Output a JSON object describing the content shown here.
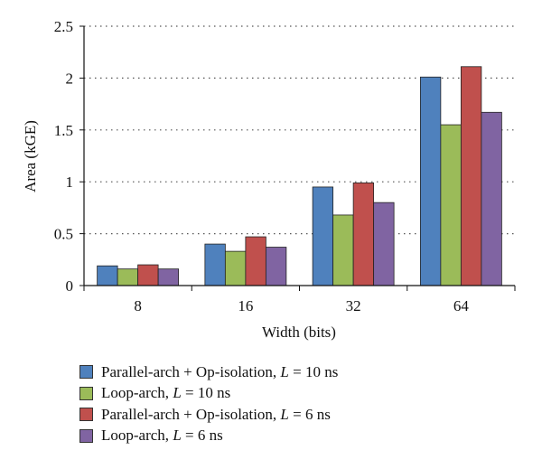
{
  "chart_data": {
    "type": "bar",
    "title": "",
    "xlabel": "Width (bits)",
    "ylabel": "Area (kGE)",
    "categories": [
      "8",
      "16",
      "32",
      "64"
    ],
    "ylim": [
      0,
      2.5
    ],
    "yticks": [
      "0",
      "0.5",
      "1",
      "1.5",
      "2",
      "2.5"
    ],
    "grid": "horizontal dotted",
    "legend_position": "bottom",
    "series": [
      {
        "name": "Parallel-arch + Op-isolation, L = 10 ns",
        "label_text": "Parallel-arch + Op-isolation, ",
        "label_var": "L",
        "label_tail": " = 10 ns",
        "color": "#4f81bd",
        "values": [
          0.19,
          0.4,
          0.95,
          2.01
        ]
      },
      {
        "name": "Loop-arch, L = 10 ns",
        "label_text": "Loop-arch, ",
        "label_var": "L",
        "label_tail": " = 10 ns",
        "color": "#9bbb59",
        "values": [
          0.16,
          0.33,
          0.68,
          1.55
        ]
      },
      {
        "name": "Parallel-arch + Op-isolation, L = 6 ns",
        "label_text": "Parallel-arch + Op-isolation, ",
        "label_var": "L",
        "label_tail": " = 6 ns",
        "color": "#c0504d",
        "values": [
          0.2,
          0.47,
          0.99,
          2.11
        ]
      },
      {
        "name": "Loop-arch, L = 6 ns",
        "label_text": "Loop-arch, ",
        "label_var": "L",
        "label_tail": " = 6 ns",
        "color": "#8064a2",
        "values": [
          0.16,
          0.37,
          0.8,
          1.67
        ]
      }
    ]
  }
}
